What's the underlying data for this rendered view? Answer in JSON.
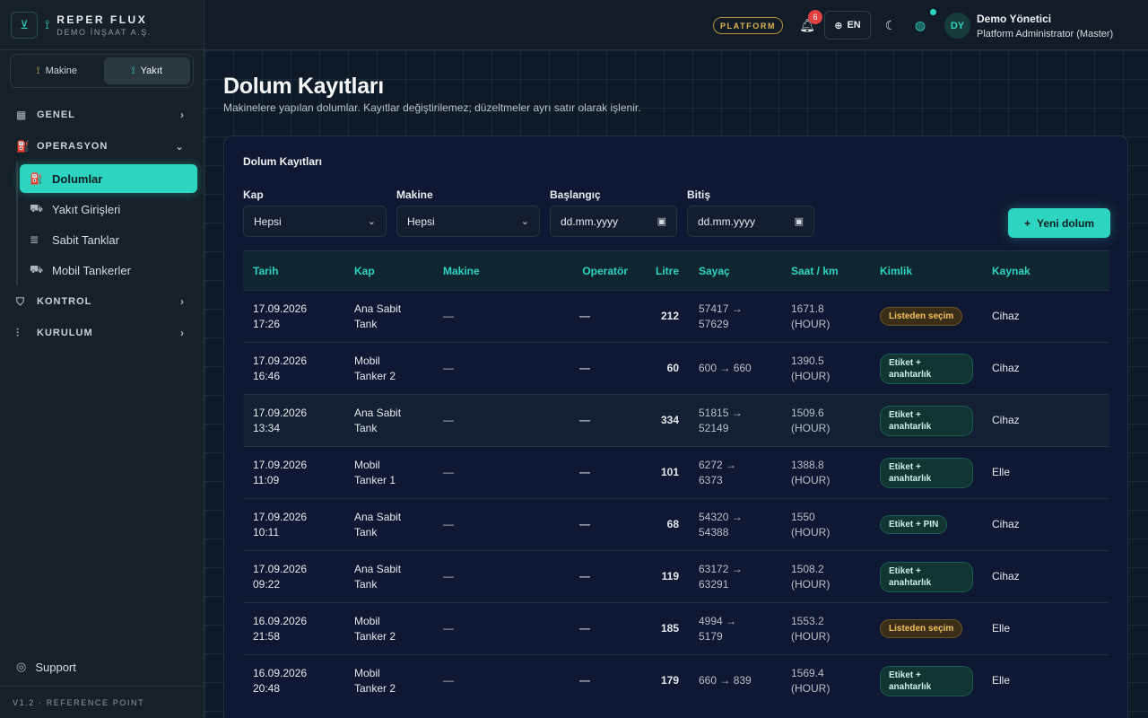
{
  "brand": {
    "title": "REPER FLUX",
    "subtitle": "DEMO İNŞAAT A.Ş.",
    "icon": "antenna-icon"
  },
  "switcher": [
    {
      "label": "Makine",
      "icon": "machine-icon",
      "active": false
    },
    {
      "label": "Yakıt",
      "icon": "fuel-icon",
      "active": true
    }
  ],
  "nav": {
    "genel": "GENEL",
    "operasyon": "OPERASYON",
    "items": [
      "Dolumlar",
      "Yakıt Girişleri",
      "Sabit Tanklar",
      "Mobil Tankerler"
    ],
    "kontrol": "KONTROL",
    "kurulum": "KURULUM"
  },
  "support": "Support",
  "version": "V1.2 · REFERENCE POINT",
  "topbar": {
    "platform": "PLATFORM",
    "notifications": "6",
    "lang": "EN",
    "avatar": "DY",
    "user_name": "Demo Yönetici",
    "user_role": "Platform Administrator (Master)"
  },
  "page": {
    "title": "Dolum Kayıtları",
    "subtitle": "Makinelere yapılan dolumlar. Kayıtlar değiştirilemez; düzeltmeler ayrı satır olarak işlenir."
  },
  "card": {
    "title": "Dolum Kayıtları"
  },
  "filters": {
    "kap": {
      "label": "Kap",
      "value": "Hepsi"
    },
    "makine": {
      "label": "Makine",
      "value": "Hepsi"
    },
    "baslangic": {
      "label": "Başlangıç",
      "value": "dd.mm.yyyy"
    },
    "bitis": {
      "label": "Bitiş",
      "value": "dd.mm.yyyy"
    }
  },
  "new_button": "Yeni dolum",
  "table": {
    "columns": [
      "Tarih",
      "Kap",
      "Makine",
      "Operatör",
      "Litre",
      "Sayaç",
      "Saat / km",
      "Kimlik",
      "Kaynak"
    ],
    "rows": [
      {
        "date": "17.09.2026 17:26",
        "kap": "Ana Sabit Tank",
        "makine": "—",
        "operator": "—",
        "litre": "212",
        "sayac": "57417 → 57629",
        "saat": "1671.8 (HOUR)",
        "kimlik": "Listeden seçim",
        "kaynak": "Cihaz"
      },
      {
        "date": "17.09.2026 16:46",
        "kap": "Mobil Tanker 2",
        "makine": "—",
        "operator": "—",
        "litre": "60",
        "sayac": "600 → 660",
        "saat": "1390.5 (HOUR)",
        "kimlik": "Etiket + anahtarlık",
        "kaynak": "Cihaz"
      },
      {
        "date": "17.09.2026 13:34",
        "kap": "Ana Sabit Tank",
        "makine": "—",
        "operator": "—",
        "litre": "334",
        "sayac": "51815 → 52149",
        "saat": "1509.6 (HOUR)",
        "kimlik": "Etiket + anahtarlık",
        "kaynak": "Cihaz"
      },
      {
        "date": "17.09.2026 11:09",
        "kap": "Mobil Tanker 1",
        "makine": "—",
        "operator": "—",
        "litre": "101",
        "sayac": "6272 → 6373",
        "saat": "1388.8 (HOUR)",
        "kimlik": "Etiket + anahtarlık",
        "kaynak": "Elle"
      },
      {
        "date": "17.09.2026 10:11",
        "kap": "Ana Sabit Tank",
        "makine": "—",
        "operator": "—",
        "litre": "68",
        "sayac": "54320 → 54388",
        "saat": "1550 (HOUR)",
        "kimlik": "Etiket + PIN",
        "kaynak": "Cihaz"
      },
      {
        "date": "17.09.2026 09:22",
        "kap": "Ana Sabit Tank",
        "makine": "—",
        "operator": "—",
        "litre": "119",
        "sayac": "63172 → 63291",
        "saat": "1508.2 (HOUR)",
        "kimlik": "Etiket + anahtarlık",
        "kaynak": "Cihaz"
      },
      {
        "date": "16.09.2026 21:58",
        "kap": "Mobil Tanker 2",
        "makine": "—",
        "operator": "—",
        "litre": "185",
        "sayac": "4994 → 5179",
        "saat": "1553.2 (HOUR)",
        "kimlik": "Listeden seçim",
        "kaynak": "Elle"
      },
      {
        "date": "16.09.2026 20:48",
        "kap": "Mobil Tanker 2",
        "makine": "—",
        "operator": "—",
        "litre": "179",
        "sayac": "660 → 839",
        "saat": "1569.4 (HOUR)",
        "kimlik": "Etiket + anahtarlık",
        "kaynak": "Elle"
      }
    ]
  },
  "colors": {
    "accent": "#2dd4bf",
    "warning": "#f0c25c",
    "badge_red": "#e04040"
  }
}
